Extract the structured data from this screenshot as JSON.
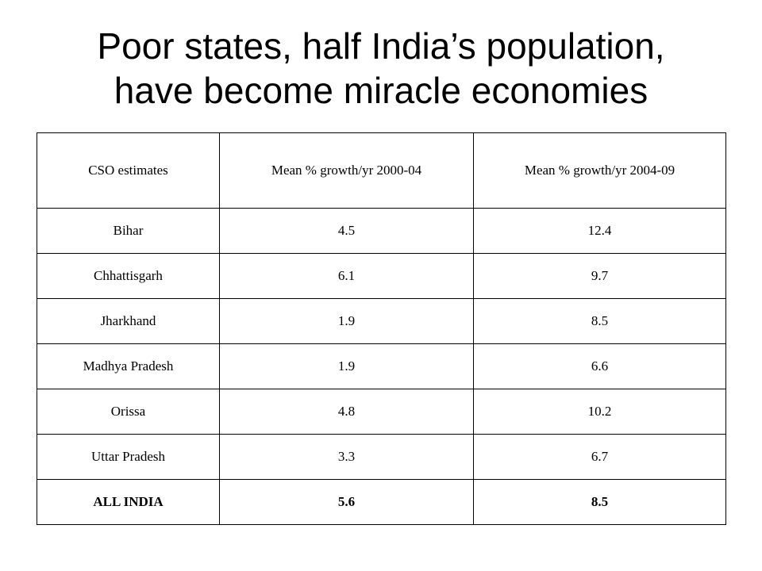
{
  "slide": {
    "title_line1": "Poor states, half India’s population,",
    "title_line2": "have become miracle economies"
  },
  "table": {
    "headers": [
      "CSO estimates",
      "Mean % growth/yr 2000-04",
      "Mean % growth/yr 2004-09"
    ],
    "rows": [
      [
        "Bihar",
        "4.5",
        "12.4"
      ],
      [
        "Chhattisgarh",
        "6.1",
        "9.7"
      ],
      [
        "Jharkhand",
        "1.9",
        "8.5"
      ],
      [
        "Madhya Pradesh",
        "1.9",
        "6.6"
      ],
      [
        "Orissa",
        "4.8",
        "10.2"
      ],
      [
        "Uttar Pradesh",
        "3.3",
        "6.7"
      ],
      [
        "ALL INDIA",
        "5.6",
        "8.5"
      ]
    ]
  }
}
